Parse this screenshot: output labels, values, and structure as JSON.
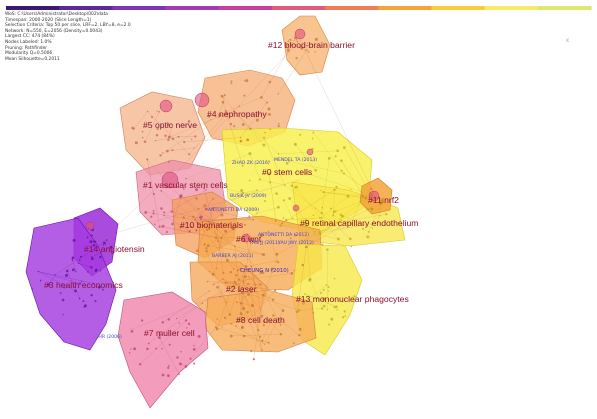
{
  "info_lines": [
    "WoS: C:\\Users\\Administrator\\Desktop\\002\\data",
    "Timespan: 2000-2020 (Slice Length=1)",
    "Selection Criteria: Top 50 per slice, LRF=2, LBY=8, e=2.0",
    "Network: N=550, E=2056 (Density=0.0043)",
    "Largest CC: 474 (84%)",
    "Nodes Labeled: 1.0%",
    "Pruning: Pathfinder",
    "Modularity Q=0.5006",
    "Mean Silhouette=0.2011"
  ],
  "timeline_colors": [
    "#3b1a6e",
    "#5a2a9a",
    "#7b35b8",
    "#a03cb0",
    "#c4409a",
    "#e05a7a",
    "#f07c55",
    "#f5a53c",
    "#f8cc3a",
    "#f8ea6a",
    "#dfe86a"
  ],
  "clusters": [
    {
      "id": "12",
      "label": "#12 blood-brain barrier",
      "color": "#f4a15a"
    },
    {
      "id": "4",
      "label": "#4 nephropathy",
      "color": "#f4a15a"
    },
    {
      "id": "5",
      "label": "#5 optic nerve",
      "color": "#f0a070"
    },
    {
      "id": "0",
      "label": "#0 stem cells",
      "color": "#f7ef3a"
    },
    {
      "id": "1",
      "label": "#1 vascular stem cells",
      "color": "#ef8aa0"
    },
    {
      "id": "11",
      "label": "#11 nrf2",
      "color": "#f6a43c"
    },
    {
      "id": "9",
      "label": "#9 retinal capillary endothelium",
      "color": "#f7e63a"
    },
    {
      "id": "10",
      "label": "#10 biomaterials",
      "color": "#f39a55"
    },
    {
      "id": "6",
      "label": "#6 wnt",
      "color": "#f59f4c"
    },
    {
      "id": "14",
      "label": "#14 angiotensin",
      "color": "#9b2cd8"
    },
    {
      "id": "3",
      "label": "#3 health economics",
      "color": "#a43be0"
    },
    {
      "id": "2",
      "label": "#2 laser",
      "color": "#f6a24a"
    },
    {
      "id": "13",
      "label": "#13 mononuclear phagocytes",
      "color": "#f8e84a"
    },
    {
      "id": "7",
      "label": "#7 muller cell",
      "color": "#f07fa6"
    },
    {
      "id": "8",
      "label": "#8 cell death",
      "color": "#f5a64a"
    }
  ],
  "authors": [
    "ZHAO ZK (2016)",
    "MENDEL TA (2013)",
    "BUSIK JV (2009)",
    "ANTONETTI DA (2009)",
    "ANTONETTI DA (2012)",
    "FAN JJ (2011)",
    "YAU JWY (2012)",
    "BARBER AJ (2011)",
    "CHEUNG N (2010)",
    "...HR (2006)"
  ],
  "corner_mark": "x"
}
